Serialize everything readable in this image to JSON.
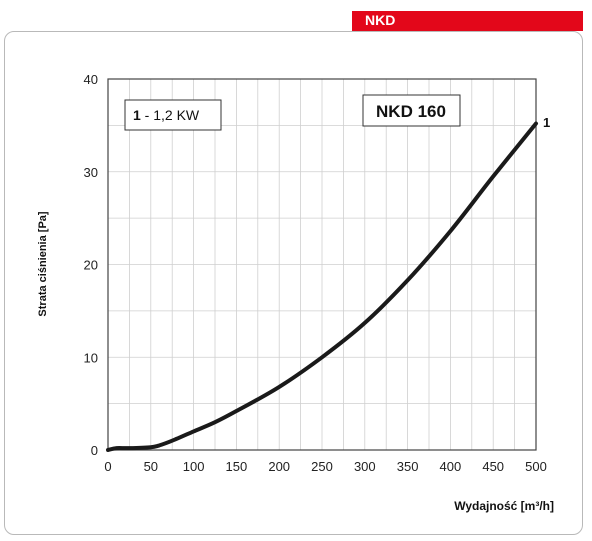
{
  "brand": {
    "label": "NKD",
    "color": "#e3071a"
  },
  "chart_data": {
    "type": "line",
    "title": "NKD 160",
    "legend_box": {
      "number": "1",
      "text": " - 1,2 KW"
    },
    "xlabel": "Wydajność [m³/h]",
    "ylabel": "Strata ciśnienia [Pa]",
    "xlim": [
      0,
      500
    ],
    "ylim": [
      0,
      40
    ],
    "x_ticks": [
      0,
      50,
      100,
      150,
      200,
      250,
      300,
      350,
      400,
      450,
      500
    ],
    "y_ticks": [
      0,
      10,
      20,
      30,
      40
    ],
    "x_minor_step": 25,
    "y_minor_step": 5,
    "grid": true,
    "series": [
      {
        "name": "1",
        "color": "#1a1a1a",
        "x": [
          0,
          10,
          25,
          50,
          60,
          75,
          100,
          125,
          150,
          200,
          250,
          300,
          350,
          400,
          450,
          500
        ],
        "y": [
          0,
          0.2,
          0.2,
          0.3,
          0.5,
          1.0,
          2.0,
          3.0,
          4.2,
          6.8,
          10.0,
          13.7,
          18.3,
          23.6,
          29.5,
          35.2
        ]
      }
    ]
  }
}
